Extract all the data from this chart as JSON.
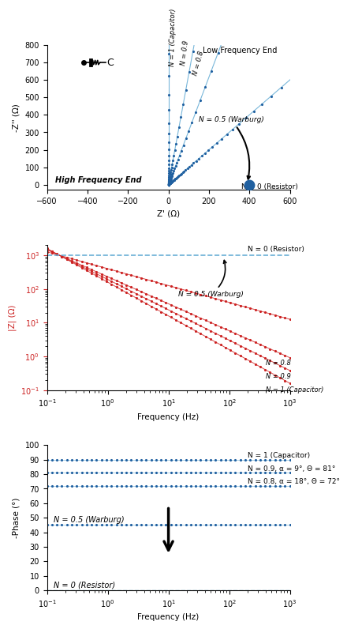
{
  "nyquist": {
    "Q": 0.001,
    "freq_min": 0.1,
    "freq_max": 1000,
    "n_points": 50,
    "xlim": [
      -600,
      600
    ],
    "ylim": [
      -30,
      800
    ],
    "xlabel": "Z' (Ω)",
    "ylabel": "-Z'' (Ω)",
    "line_color": "#6aafd6",
    "dot_color": "#2060a0",
    "resistor_color": "#2060a0",
    "resistor_R": 400,
    "label_hf": "High Frequency End",
    "label_lf": "Low Frequency End",
    "label_N05": "N = 0.5 (Warburg)",
    "label_N08": "N = 0.8",
    "label_N09": "N = 0.9",
    "label_N1": "N = 1 (Capacitor)",
    "label_N0": "N = 0 (Resistor)"
  },
  "bode_mag": {
    "Q": 0.001,
    "freq_min": 0.1,
    "freq_max": 1000,
    "n_points": 50,
    "xlim": [
      0.1,
      1000
    ],
    "ylim": [
      0.1,
      2000
    ],
    "xlabel": "Frequency (Hz)",
    "ylabel": "|Z| (Ω)",
    "line_color": "#cc2222",
    "dot_color": "#cc2222",
    "N0_color": "#6aafd6",
    "label_N0": "N = 0 (Resistor)",
    "label_N05": "N = 0.5 (Warburg)",
    "label_N08": "N = 0.8",
    "label_N09": "N = 0.9",
    "label_N1": "N = 1 (Capacitor)"
  },
  "bode_phase": {
    "Q": 0.001,
    "freq_min": 0.1,
    "freq_max": 1000,
    "n_points": 50,
    "xlim": [
      0.1,
      1000
    ],
    "ylim": [
      0,
      100
    ],
    "xlabel": "Frequency (Hz)",
    "ylabel": "-Phase (°)",
    "dot_color": "#2060a0",
    "line_color": "#6aafd6",
    "N0_color": "#6aafd6",
    "label_N0": "N = 0 (Resistor)",
    "label_N05": "N = 0.5 (Warburg)",
    "label_N08": "N = 0.8, α = 18°, Θ = 72°",
    "label_N09": "N = 0.9, α = 9°, Θ = 81°",
    "label_N1": "N = 1 (Capacitor)"
  }
}
